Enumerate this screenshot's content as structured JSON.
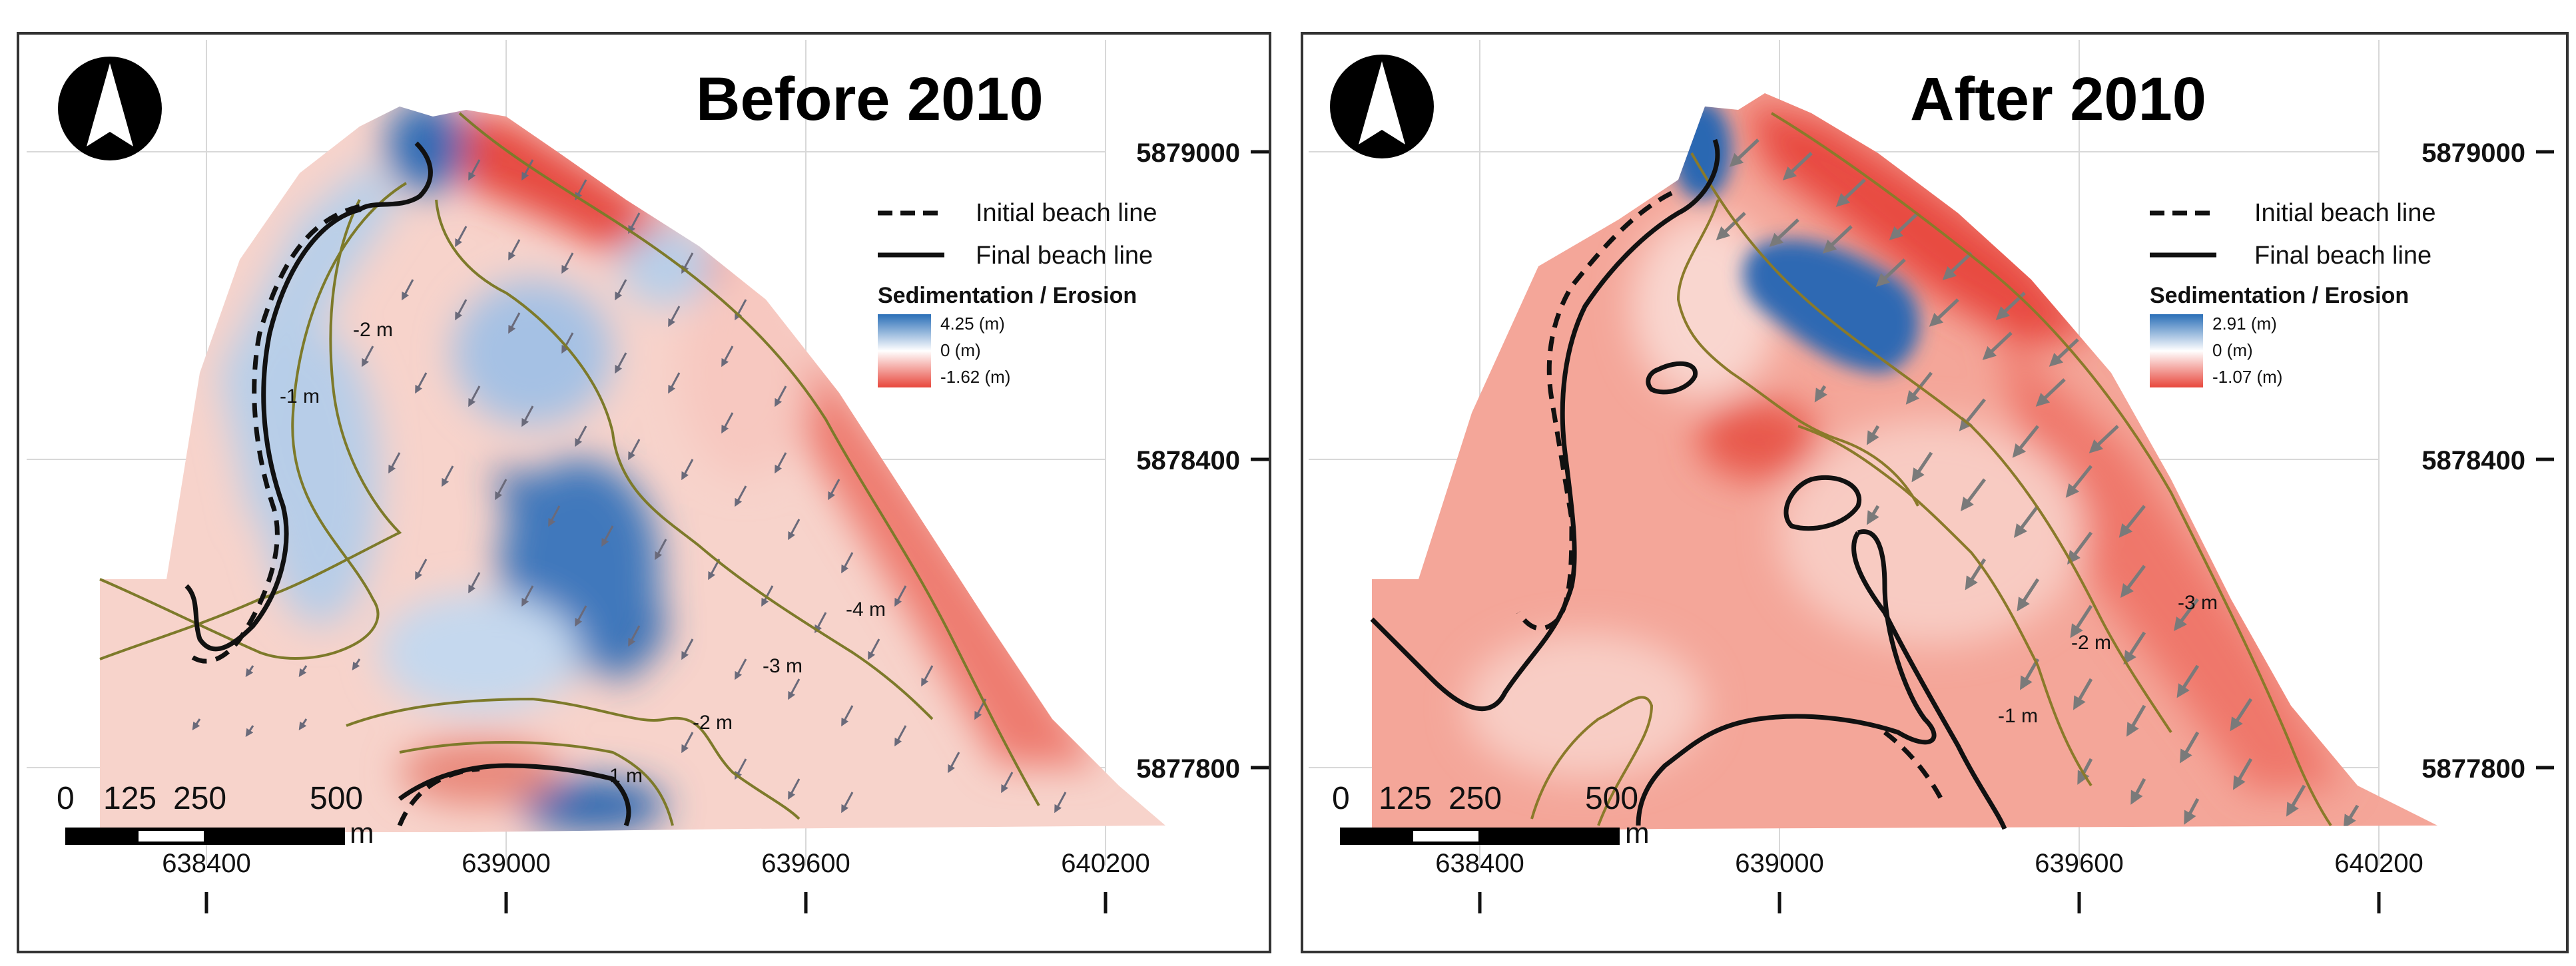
{
  "panels": [
    {
      "title": "Before 2010",
      "legend": {
        "initial_label": "Initial beach line",
        "final_label": "Final beach line",
        "title": "Sedimentation / Erosion",
        "max_label": "4.25  (m)",
        "zero_label": "0     (m)",
        "min_label": "-1.62  (m)"
      },
      "contour_labels": [
        "-1 m",
        "-2 m",
        "-4 m",
        "-3 m",
        "-2 m",
        "-1 m"
      ],
      "x_ticks": [
        "638400",
        "639000",
        "639600",
        "640200"
      ],
      "y_ticks": [
        "5879000",
        "5878400",
        "5877800"
      ],
      "scale": {
        "labels": [
          "0",
          "125",
          "250",
          "500"
        ],
        "unit": "m"
      }
    },
    {
      "title": "After 2010",
      "legend": {
        "initial_label": "Initial beach line",
        "final_label": "Final beach line",
        "title": "Sedimentation / Erosion",
        "max_label": "2.91  (m)",
        "zero_label": "0     (m)",
        "min_label": "-1.07  (m)"
      },
      "contour_labels": [
        "-3 m",
        "-2 m",
        "-1 m"
      ],
      "x_ticks": [
        "638400",
        "639000",
        "639600",
        "640200"
      ],
      "y_ticks": [
        "5879000",
        "5878400",
        "5877800"
      ],
      "scale": {
        "labels": [
          "0",
          "125",
          "250",
          "500"
        ],
        "unit": "m"
      }
    }
  ],
  "colors": {
    "erosion": "#e8473c",
    "erosion_light": "#f6b4a8",
    "sedimentation": "#2a6fb8",
    "sedimentation_light": "#a9c5e6",
    "contour": "#7d7a2a",
    "arrow_before": "#6a6a7a",
    "arrow_after": "#7a7a7a"
  }
}
